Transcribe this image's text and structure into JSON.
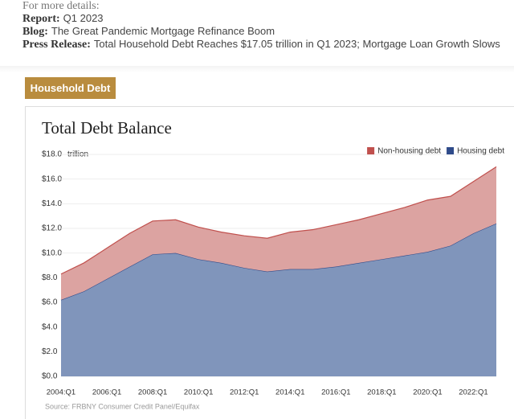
{
  "header": {
    "intro": "For more details:",
    "links": [
      {
        "label": "Report:",
        "text": "Q1 2023"
      },
      {
        "label": "Blog:",
        "text": "The Great Pandemic Mortgage Refinance Boom"
      },
      {
        "label": "Press Release:",
        "text": "Total Household Debt Reaches $17.05 trillion in Q1 2023; Mortgage Loan Growth Slows"
      }
    ]
  },
  "tab": "Household Debt",
  "chart_data": {
    "type": "stacked_area",
    "title": "Total Debt Balance",
    "unit_label": "trillion",
    "source": "Source: FRBNY Consumer Credit Panel/Equifax",
    "categories": [
      "2004:Q1",
      null,
      "2006:Q1",
      null,
      "2008:Q1",
      null,
      "2010:Q1",
      null,
      "2012:Q1",
      null,
      "2014:Q1",
      null,
      "2016:Q1",
      null,
      "2018:Q1",
      null,
      "2020:Q1",
      null,
      "2022:Q1",
      null
    ],
    "series": [
      {
        "name": "Housing debt",
        "color": "#2f4b8a",
        "fill": "#8095bb",
        "values": [
          6.2,
          6.9,
          7.9,
          8.9,
          9.9,
          10.0,
          9.5,
          9.2,
          8.8,
          8.5,
          8.7,
          8.7,
          8.9,
          9.2,
          9.5,
          9.8,
          10.1,
          10.6,
          11.6,
          12.4
        ]
      },
      {
        "name": "Non-housing debt",
        "color": "#c0504d",
        "fill": "#dca3a1",
        "values": [
          2.1,
          2.3,
          2.5,
          2.7,
          2.7,
          2.7,
          2.6,
          2.5,
          2.6,
          2.7,
          3.0,
          3.2,
          3.4,
          3.5,
          3.7,
          3.9,
          4.2,
          4.0,
          4.2,
          4.6
        ]
      }
    ],
    "ylim": [
      0,
      18
    ],
    "yticks": [
      {
        "value": 0,
        "label": "$0.0"
      },
      {
        "value": 2,
        "label": "$2.0"
      },
      {
        "value": 4,
        "label": "$4.0"
      },
      {
        "value": 6,
        "label": "$6.0"
      },
      {
        "value": 8,
        "label": "$8.0"
      },
      {
        "value": 10,
        "label": "$10.0"
      },
      {
        "value": 12,
        "label": "$12.0"
      },
      {
        "value": 14,
        "label": "$14.0"
      },
      {
        "value": 16,
        "label": "$16.0"
      },
      {
        "value": 18,
        "label": "$18.0"
      }
    ],
    "grid": true,
    "legend": "top-right"
  }
}
